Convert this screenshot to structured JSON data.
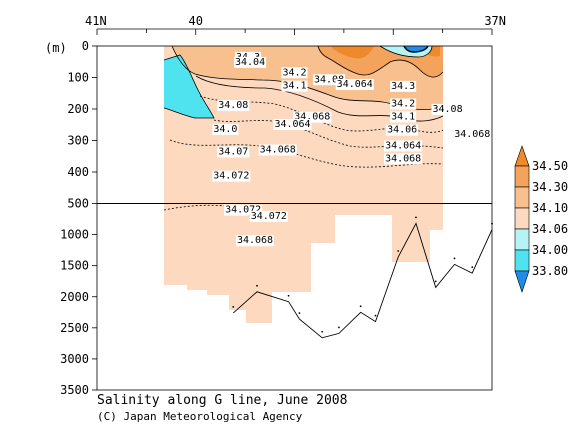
{
  "title": "Salinity along G line, June 2008",
  "credit": "(C) Japan Meteorological Agency",
  "colors": {
    "s_33_80_34_00": "#4fe3f0",
    "s_34_00_34_06": "#b6f3f6",
    "s_34_06_34_10": "#fcd9bf",
    "s_34_10_34_30": "#f8c08e",
    "s_34_30_34_50": "#f4a35c",
    "s_gt_34_50": "#ef8a2c",
    "s_lt_33_80": "#1e8ce8"
  },
  "chart_data": {
    "type": "section",
    "variable": "Salinity",
    "title": "Salinity along G line, June 2008",
    "top_axis": {
      "ticks": [
        {
          "label": "41N",
          "lat": 41
        },
        {
          "label": "40",
          "lat": 40
        },
        {
          "label": "37N",
          "lat": 37
        }
      ]
    },
    "y_axis": {
      "unit": "(m)",
      "upper_ticks": [
        0,
        100,
        200,
        300,
        400,
        500
      ],
      "lower_ticks": [
        1000,
        1500,
        2000,
        2500,
        3000,
        3500
      ],
      "break_depth": 500,
      "ylim": [
        0,
        3500
      ]
    },
    "colorbar": {
      "levels": [
        "34.50",
        "34.30",
        "34.10",
        "34.06",
        "34.00",
        "33.80"
      ]
    },
    "bottom_depth": [
      {
        "lat": 39.62,
        "depth": 2260
      },
      {
        "lat": 39.38,
        "depth": 1920
      },
      {
        "lat": 39.06,
        "depth": 2080
      },
      {
        "lat": 38.95,
        "depth": 2360
      },
      {
        "lat": 38.72,
        "depth": 2660
      },
      {
        "lat": 38.55,
        "depth": 2590
      },
      {
        "lat": 38.33,
        "depth": 2250
      },
      {
        "lat": 38.18,
        "depth": 2400
      },
      {
        "lat": 37.95,
        "depth": 1360
      },
      {
        "lat": 37.77,
        "depth": 820
      },
      {
        "lat": 37.57,
        "depth": 1850
      },
      {
        "lat": 37.38,
        "depth": 1480
      },
      {
        "lat": 37.2,
        "depth": 1620
      },
      {
        "lat": 37.0,
        "depth": 920
      }
    ],
    "contour_labels": [
      {
        "text": "34.3",
        "lat": 39.47,
        "depth": 33
      },
      {
        "text": "34.04",
        "lat": 39.45,
        "depth": 49
      },
      {
        "text": "34.2",
        "lat": 39.0,
        "depth": 82
      },
      {
        "text": "34.08",
        "lat": 38.65,
        "depth": 104
      },
      {
        "text": "34.064",
        "lat": 38.39,
        "depth": 119
      },
      {
        "text": "34.1",
        "lat": 39.0,
        "depth": 124
      },
      {
        "text": "34.3",
        "lat": 37.9,
        "depth": 125
      },
      {
        "text": "34.08",
        "lat": 39.62,
        "depth": 186
      },
      {
        "text": "34.2",
        "lat": 37.9,
        "depth": 181
      },
      {
        "text": "34.08",
        "lat": 37.45,
        "depth": 198
      },
      {
        "text": "34.068",
        "lat": 38.82,
        "depth": 223
      },
      {
        "text": "34.1",
        "lat": 37.9,
        "depth": 222
      },
      {
        "text": "34.064",
        "lat": 39.02,
        "depth": 246
      },
      {
        "text": "34.06",
        "lat": 37.91,
        "depth": 264
      },
      {
        "text": "34.068",
        "lat": 37.2,
        "depth": 278
      },
      {
        "text": "34.0",
        "lat": 39.7,
        "depth": 262
      },
      {
        "text": "34.07",
        "lat": 39.62,
        "depth": 333
      },
      {
        "text": "34.068",
        "lat": 39.17,
        "depth": 327
      },
      {
        "text": "34.064",
        "lat": 37.9,
        "depth": 314
      },
      {
        "text": "34.068",
        "lat": 37.9,
        "depth": 355
      },
      {
        "text": "34.072",
        "lat": 39.64,
        "depth": 410
      },
      {
        "text": "34.072",
        "lat": 39.52,
        "depth": 590
      },
      {
        "text": "34.072",
        "lat": 39.26,
        "depth": 692
      },
      {
        "text": "34.068",
        "lat": 39.4,
        "depth": 1083
      }
    ]
  }
}
